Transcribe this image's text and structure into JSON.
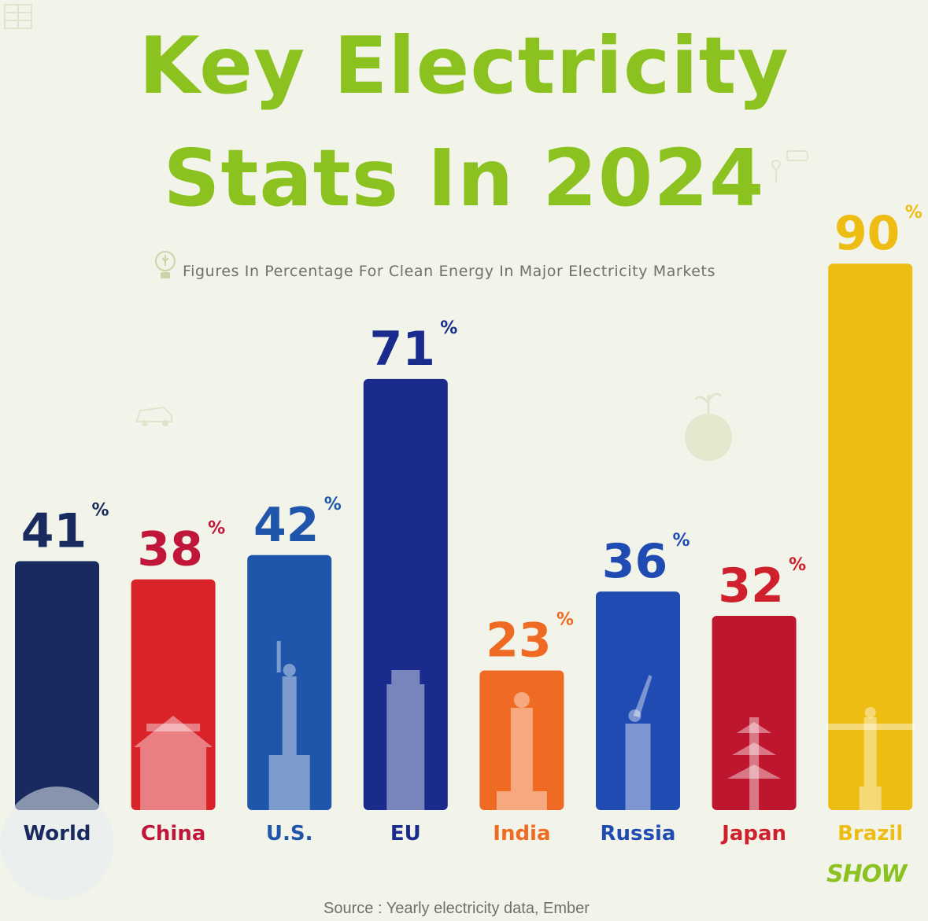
{
  "header": {
    "title_line1": "Key Electricity",
    "title_line2": "Stats In 2024",
    "subtitle": "Figures In Percentage For Clean Energy In Major Electricity Markets"
  },
  "footer": {
    "source": "Source : Yearly electricity data, Ember",
    "logo": "SHOW"
  },
  "colors": {
    "title": "#8cc21f",
    "background": "#f2f4ea"
  },
  "chart_data": {
    "type": "bar",
    "title": "Key Electricity Stats In 2024",
    "subtitle": "Figures In Percentage For Clean Energy In Major Electricity Markets",
    "unit": "%",
    "categories": [
      "World",
      "China",
      "U.S.",
      "EU",
      "India",
      "Russia",
      "Japan",
      "Brazil"
    ],
    "values": [
      41,
      38,
      42,
      71,
      23,
      36,
      32,
      90
    ],
    "bar_colors": [
      "#182a5e",
      "#da2328",
      "#1f55ab",
      "#192c8e",
      "#ef6a23",
      "#1f4bb2",
      "#bf1630",
      "#eebd13"
    ],
    "label_colors": [
      "#182a5e",
      "#c0163a",
      "#1f55ab",
      "#192c8e",
      "#ef6a23",
      "#1f4bb2",
      "#d0202d",
      "#eebd13"
    ],
    "icons": [
      "globe-icon",
      "temple-icon",
      "statue-of-liberty-icon",
      "leaning-tower-icon",
      "statue-icon",
      "motherland-statue-icon",
      "pagoda-icon",
      "christ-redeemer-icon"
    ],
    "ylim": [
      0,
      100
    ],
    "grid": false,
    "legend": "none"
  }
}
